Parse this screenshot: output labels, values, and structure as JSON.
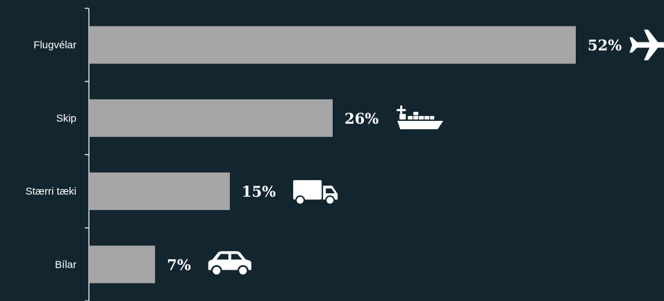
{
  "chart_data": {
    "type": "bar",
    "orientation": "horizontal",
    "categories": [
      "Flugvélar",
      "Skip",
      "Stærri tæki",
      "Bílar"
    ],
    "values": [
      52,
      26,
      15,
      7
    ],
    "value_labels": [
      "52%",
      "26%",
      "15%",
      "7%"
    ],
    "icons": [
      "airplane-icon",
      "cargo-ship-icon",
      "truck-icon",
      "car-icon"
    ],
    "xlim": [
      0,
      52
    ],
    "grid": false,
    "legend": "none",
    "colors": {
      "background": "#13252e",
      "bar": "#a6a6a6",
      "text": "#ffffff"
    }
  }
}
